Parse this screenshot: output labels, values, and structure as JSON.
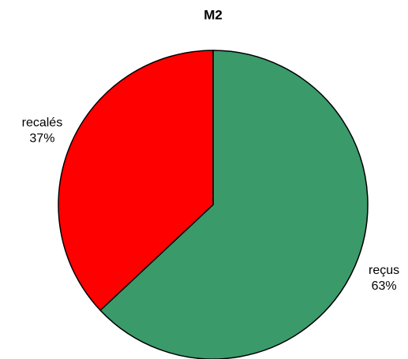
{
  "chart_data": {
    "type": "pie",
    "title": "M2",
    "categories": [
      "reçus",
      "recalés"
    ],
    "values": [
      63,
      37
    ],
    "value_labels": [
      "63%",
      "37%"
    ],
    "colors": [
      "#3a9a6a",
      "#ff0000"
    ]
  }
}
